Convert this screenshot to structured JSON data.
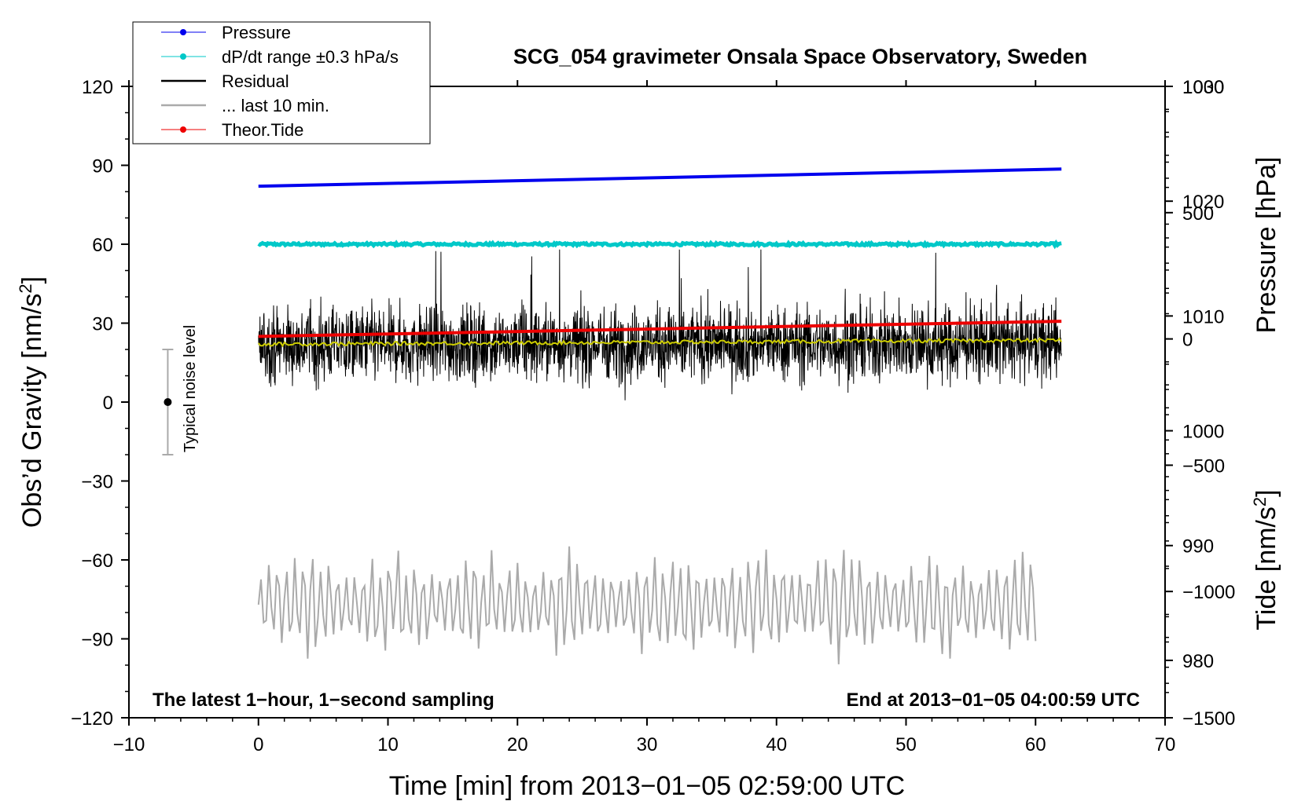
{
  "chart_data": {
    "type": "line",
    "title": "SCG_054 gravimeter Onsala Space Observatory, Sweden",
    "xlabel": "Time [min] from 2013−01−05 02:59:00 UTC",
    "ylabel_left": "Obs’d Gravity [nm/s",
    "ylabel_left_sup": "2",
    "ylabel_left_close": "]",
    "ylabel_right_pressure": "Pressure [hPa]",
    "ylabel_right_tide": "Tide [nm/s",
    "ylabel_right_tide_sup": "2",
    "ylabel_right_tide_close": "]",
    "xlim": [
      -10,
      70
    ],
    "ylim_left": [
      -120,
      120
    ],
    "pressure_axis": {
      "range": [
        975,
        1030
      ],
      "ticks": [
        980,
        990,
        1000,
        1010,
        1020,
        1030
      ]
    },
    "tide_axis": {
      "range": [
        -1500,
        1000
      ],
      "ticks": [
        -1500,
        -1000,
        -500,
        0,
        500,
        1000
      ]
    },
    "x_ticks": [
      -10,
      0,
      10,
      20,
      30,
      40,
      50,
      60,
      70
    ],
    "x_tick_labels": [
      "−10",
      "0",
      "10",
      "20",
      "30",
      "40",
      "50",
      "60",
      "70"
    ],
    "y_left_ticks": [
      -120,
      -90,
      -60,
      -30,
      0,
      30,
      60,
      90,
      120
    ],
    "y_left_tick_labels": [
      "−120",
      "−90",
      "−60",
      "−30",
      "0",
      "30",
      "60",
      "90",
      "120"
    ],
    "pressure_tick_labels": [
      "980",
      "990",
      "1000",
      "1010",
      "1020",
      "1030"
    ],
    "tide_tick_labels": [
      "−1500",
      "−1000",
      "−500",
      "0",
      "500",
      "1000"
    ],
    "legend": [
      {
        "label": "Pressure",
        "color": "#0000ee",
        "marker": true
      },
      {
        "label": "dP/dt range ±0.3 hPa/s",
        "color": "#00c8c8",
        "marker": true
      },
      {
        "label": "Residual",
        "color": "#000000",
        "marker": false
      },
      {
        "label": "... last 10 min.",
        "color": "#aaaaaa",
        "marker": false
      },
      {
        "label": "Theor.Tide",
        "color": "#ee0000",
        "marker": true
      }
    ],
    "series": [
      {
        "name": "Pressure",
        "axis": "pressure",
        "color": "#0000ee",
        "x": [
          0,
          62
        ],
        "values": [
          1021.3,
          1022.8
        ]
      },
      {
        "name": "dP/dt range",
        "axis": "left",
        "color": "#00c8c8",
        "x": [
          0,
          62
        ],
        "values": [
          60,
          60
        ]
      },
      {
        "name": "Residual",
        "axis": "left",
        "color": "#000000",
        "x_range": [
          0,
          62
        ],
        "mean": 22,
        "noise_amplitude": 14
      },
      {
        "name": "Residual running mean",
        "axis": "left",
        "color": "#cccc00",
        "x": [
          0,
          62
        ],
        "values": [
          22,
          23.5
        ]
      },
      {
        "name": "Theor.Tide",
        "axis": "tide",
        "color": "#ee0000",
        "x": [
          0,
          62
        ],
        "values": [
          10,
          70
        ]
      },
      {
        "name": "last 10 min.",
        "axis": "left",
        "color": "#aaaaaa",
        "x_range": [
          0,
          60
        ],
        "mean": -77,
        "amplitude_range": [
          -102,
          -50
        ]
      }
    ],
    "noise_bar": {
      "label": "Typical noise level",
      "x": -7,
      "center": 0,
      "half_range": 20,
      "color": "#aaaaaa"
    },
    "footer_left": "The latest 1−hour, 1−second sampling",
    "footer_right": "End at 2013−01−05 04:00:59 UTC"
  }
}
